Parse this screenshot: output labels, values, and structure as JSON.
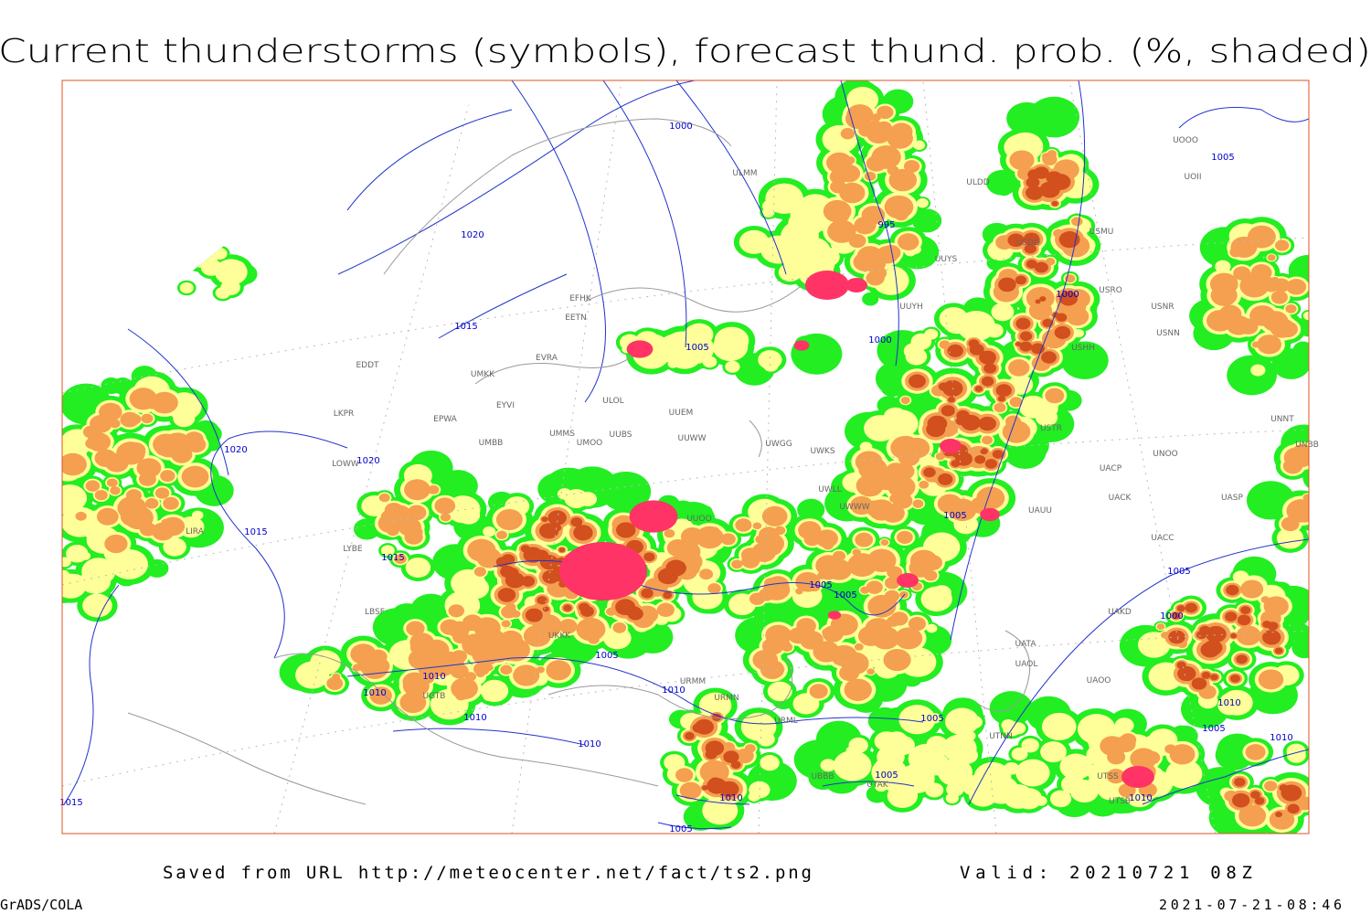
{
  "title": "Current thunderstorms (symbols), forecast thund. prob. (%, shaded)",
  "footer": {
    "saved_from": "Saved from URL http://meteocenter.net/fact/ts2.png",
    "valid": "Valid: 20210721 08Z",
    "software": "GrADS/COLA",
    "timestamp": "2021-07-21-08:46"
  },
  "isobar_labels": [
    "1000",
    "995",
    "1020",
    "1015",
    "1005",
    "1000",
    "1000",
    "1005",
    "1020",
    "1020",
    "1015",
    "1015",
    "1005",
    "1005",
    "1005",
    "1005",
    "1005",
    "1000",
    "1005",
    "1010",
    "1010",
    "1010",
    "1010",
    "1010",
    "1005",
    "1010",
    "1005",
    "1010",
    "1005",
    "1010",
    "1010",
    "1005",
    "1015"
  ],
  "station_labels": [
    "ULDD",
    "UUYS",
    "UUYH",
    "USDD",
    "USMU",
    "USRO",
    "USNR",
    "USNN",
    "USHH",
    "USTR",
    "UNOO",
    "UACP",
    "UACK",
    "UAUU",
    "UASP",
    "UACC",
    "UAKD",
    "UATA",
    "UAOL",
    "UAOO",
    "UNNT",
    "UNBB",
    "UOOO",
    "UOII",
    "UUEM",
    "UUWW",
    "EFHK",
    "EETN",
    "EVRA",
    "ULOL",
    "EYVI",
    "UMMS",
    "UMOO",
    "UUBS",
    "UMBB",
    "EPWA",
    "LKPR",
    "EDDT",
    "UMKK",
    "UWGG",
    "UWKS",
    "UWLL",
    "UWWW",
    "LIRA",
    "LYBE",
    "LBSF",
    "UKKK",
    "UUOO",
    "ULMM",
    "LOWW",
    "URML",
    "UGTB",
    "URMM",
    "URMN",
    "UBBB",
    "UTAK",
    "UTNN",
    "UTSS",
    "UTSB"
  ]
}
